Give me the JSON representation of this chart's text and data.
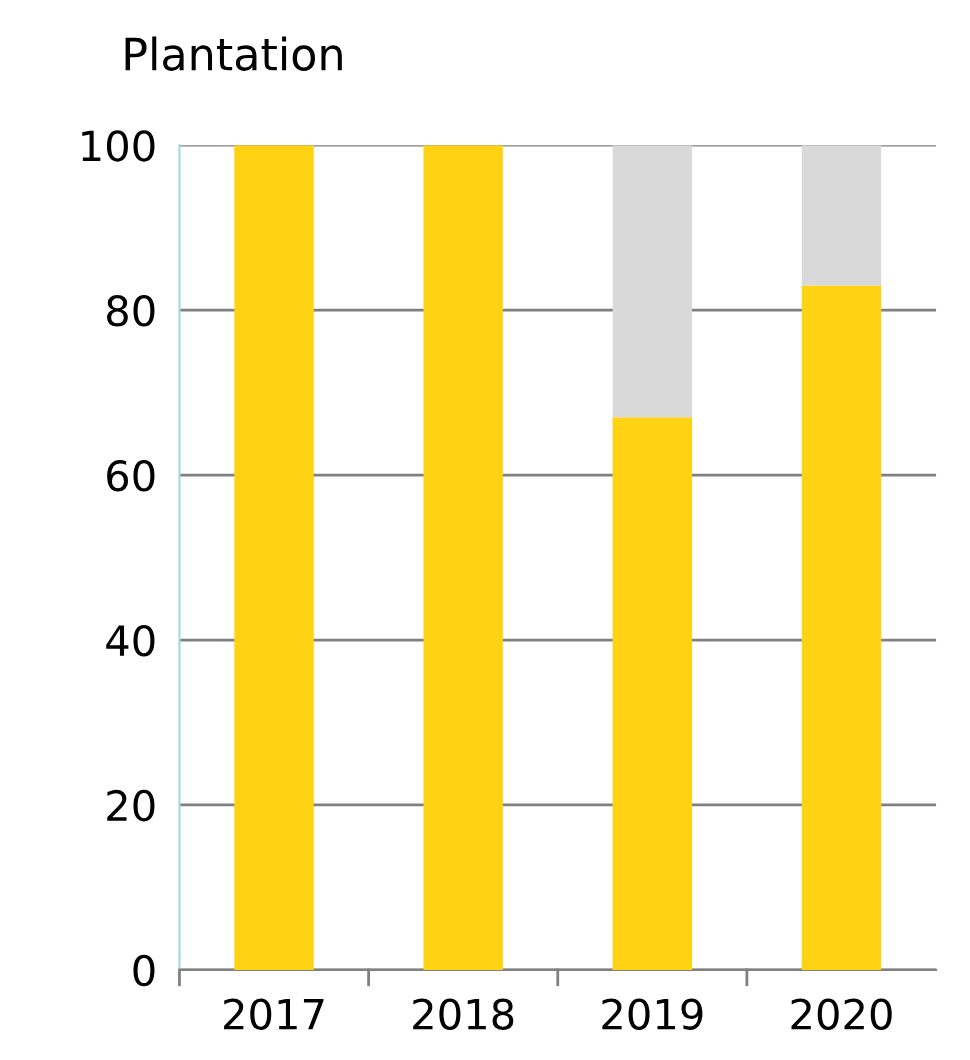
{
  "chart_data": {
    "type": "bar",
    "title": "Plantation",
    "categories": [
      "2017",
      "2018",
      "2019",
      "2020"
    ],
    "stacked": true,
    "series": [
      {
        "color": "#ffd214",
        "values": [
          100,
          100,
          67,
          83
        ]
      },
      {
        "color": "#d9d9d9",
        "values": [
          0,
          0,
          33,
          17
        ]
      }
    ],
    "ylim": [
      0,
      100
    ],
    "yticks": [
      0,
      20,
      40,
      60,
      80,
      100
    ],
    "grid": "y",
    "legend": false
  }
}
